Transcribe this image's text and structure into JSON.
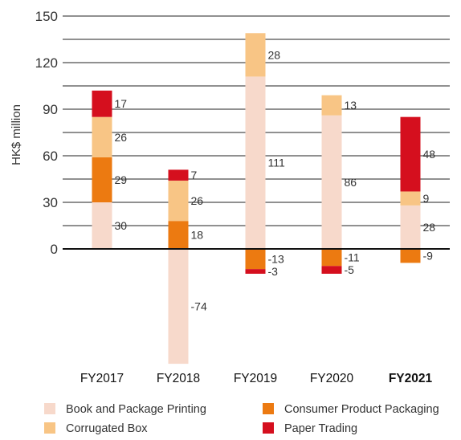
{
  "chart_data": {
    "type": "bar",
    "stacked": true,
    "ylabel": "HK$ million",
    "ylim": [
      -150,
      150
    ],
    "yticks": [
      0,
      30,
      60,
      90,
      120,
      150
    ],
    "grid": true,
    "legend_position": "bottom",
    "categories": [
      "FY2017",
      "FY2018",
      "FY2019",
      "FY2020",
      "FY2021"
    ],
    "highlight_category": "FY2021",
    "series": [
      {
        "name": "Book and Package Printing",
        "color": "#f7d9cb",
        "values": [
          30,
          -74,
          111,
          86,
          28
        ]
      },
      {
        "name": "Consumer Product Packaging",
        "color": "#ec7a11",
        "values": [
          29,
          18,
          -13,
          -11,
          -9
        ]
      },
      {
        "name": "Corrugated Box",
        "color": "#f8c585",
        "values": [
          26,
          26,
          28,
          13,
          9
        ]
      },
      {
        "name": "Paper Trading",
        "color": "#d50f1e",
        "values": [
          17,
          7,
          -3,
          -5,
          48
        ]
      }
    ]
  }
}
